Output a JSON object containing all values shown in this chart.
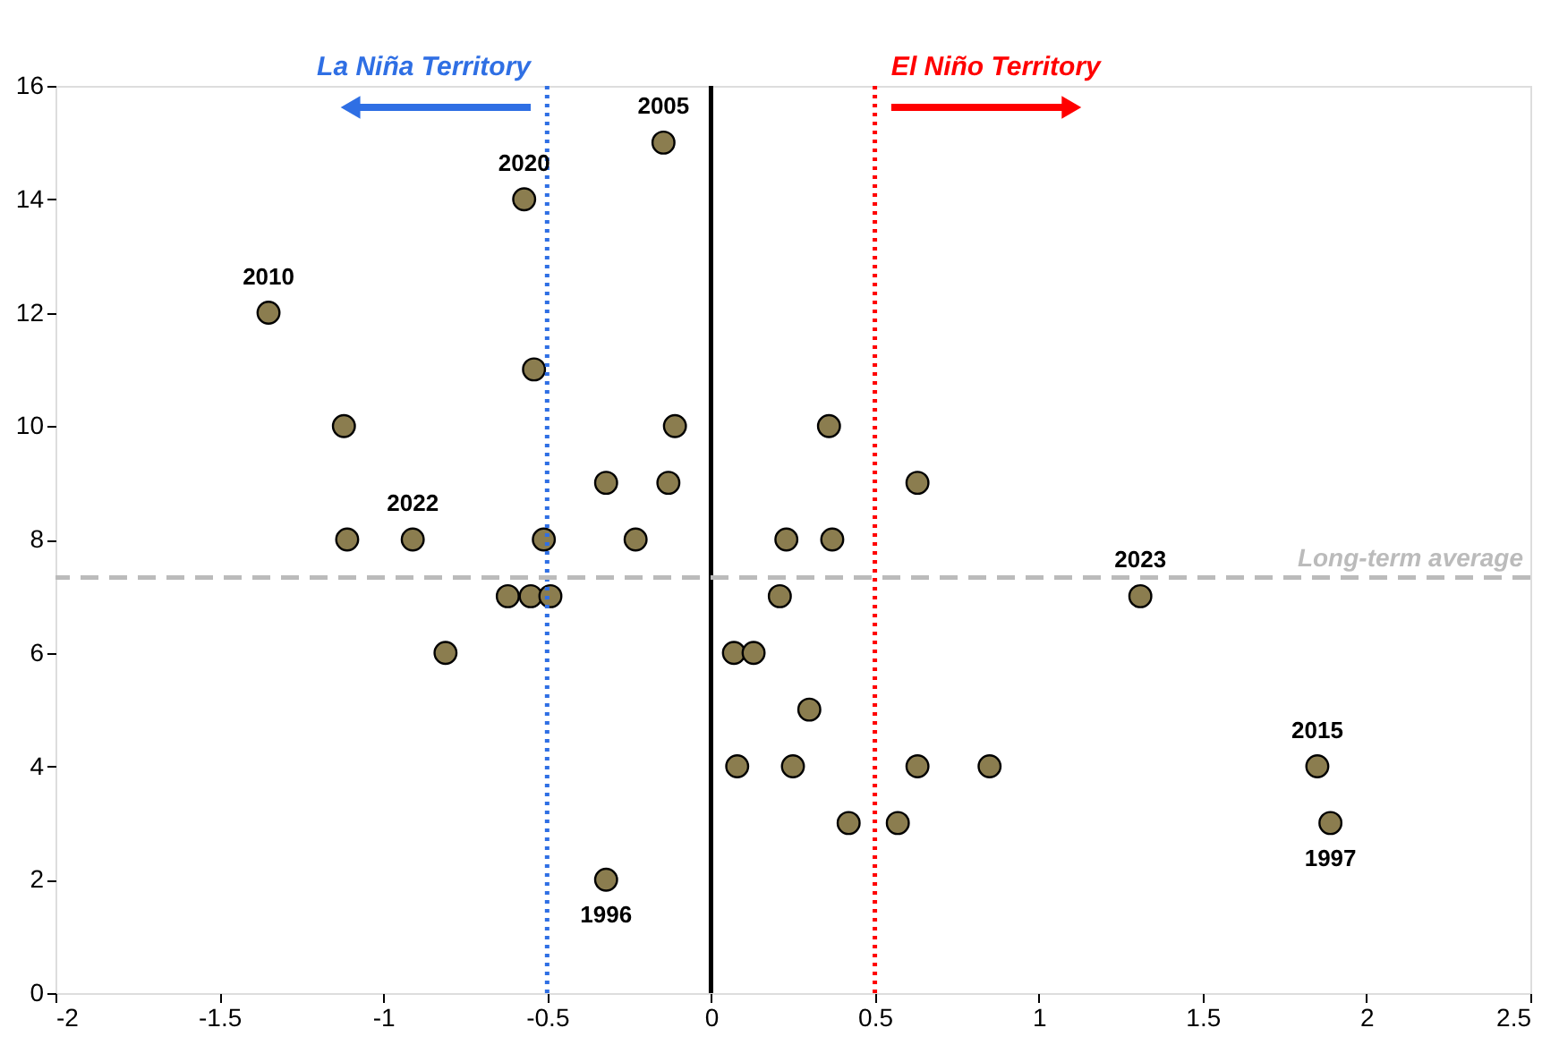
{
  "chart_data": {
    "type": "scatter",
    "x": [
      -0.145,
      -0.57,
      -1.35,
      -0.54,
      -1.12,
      -0.11,
      -0.32,
      -0.13,
      -1.11,
      -0.91,
      -0.51,
      -0.23,
      -0.62,
      -0.55,
      -0.49,
      -0.81,
      -0.32,
      0.36,
      0.63,
      0.23,
      0.37,
      0.21,
      1.31,
      0.07,
      0.13,
      0.3,
      0.08,
      0.25,
      0.63,
      0.85,
      1.85,
      0.42,
      0.57,
      1.89
    ],
    "series": [
      {
        "color": "#8b7d4f",
        "values": [
          15,
          14,
          12,
          11,
          10,
          10,
          9,
          9,
          8,
          8,
          8,
          8,
          7,
          7,
          7,
          6,
          2,
          10,
          9,
          8,
          8,
          7,
          7,
          6,
          6,
          5,
          4,
          4,
          4,
          4,
          4,
          3,
          3,
          3
        ]
      }
    ],
    "marker": "circle",
    "xlim": [
      -2,
      2.5
    ],
    "xticks": [
      -2,
      -1.5,
      -1,
      -0.5,
      0,
      0.5,
      1,
      1.5,
      2,
      2.5
    ],
    "ylim": [
      0,
      16
    ],
    "yticks": [
      0,
      2,
      4,
      6,
      8,
      10,
      12,
      14,
      16
    ],
    "grid": false,
    "legend": false,
    "ref_lines": [
      {
        "axis": "x",
        "value": 0,
        "color": "#000000",
        "line_style": "solid"
      },
      {
        "axis": "x",
        "value": -0.5,
        "label": "La Niña Territory",
        "color": "#2f6fe4",
        "line_style": "dotted"
      },
      {
        "axis": "x",
        "value": 0.5,
        "label": "El Niño Territory",
        "color": "#ff0000",
        "line_style": "dotted"
      },
      {
        "axis": "y",
        "value": 7.33,
        "label": "Long-term average",
        "color": "#bbbbbb",
        "line_style": "dashed"
      }
    ],
    "annotations": [
      {
        "text": "2005",
        "x": -0.145,
        "y": 15
      },
      {
        "text": "2020",
        "x": -0.57,
        "y": 14
      },
      {
        "text": "2010",
        "x": -1.35,
        "y": 12
      },
      {
        "text": "2022",
        "x": -0.91,
        "y": 8
      },
      {
        "text": "1996",
        "x": -0.32,
        "y": 2
      },
      {
        "text": "2023",
        "x": 1.31,
        "y": 7
      },
      {
        "text": "2015",
        "x": 1.85,
        "y": 4
      },
      {
        "text": "1997",
        "x": 1.89,
        "y": 3
      }
    ]
  }
}
